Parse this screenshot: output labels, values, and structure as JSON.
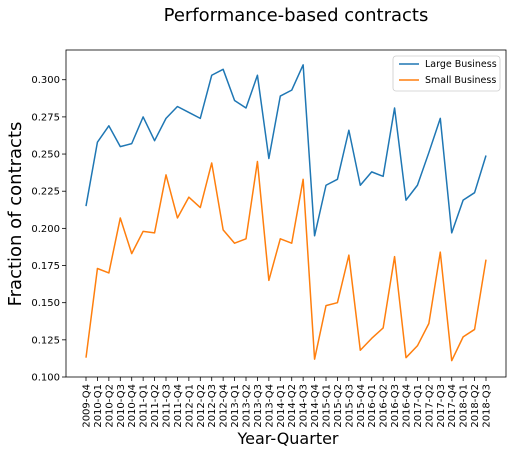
{
  "chart_data": {
    "type": "line",
    "title": "Performance-based contracts",
    "xlabel": "Year-Quarter",
    "ylabel": "Fraction of contracts",
    "ylim": [
      0.1,
      0.32
    ],
    "yticks": [
      "0.100",
      "0.125",
      "0.150",
      "0.175",
      "0.200",
      "0.225",
      "0.250",
      "0.275",
      "0.300"
    ],
    "grid": false,
    "legend_position": "top-right",
    "categories": [
      "2009-Q4",
      "2010-Q1",
      "2010-Q2",
      "2010-Q3",
      "2010-Q4",
      "2011-Q1",
      "2011-Q2",
      "2011-Q3",
      "2011-Q4",
      "2012-Q1",
      "2012-Q2",
      "2012-Q3",
      "2012-Q4",
      "2013-Q1",
      "2013-Q2",
      "2013-Q3",
      "2013-Q4",
      "2014-Q1",
      "2014-Q2",
      "2014-Q3",
      "2014-Q4",
      "2015-Q1",
      "2015-Q2",
      "2015-Q3",
      "2015-Q4",
      "2016-Q1",
      "2016-Q2",
      "2016-Q3",
      "2016-Q4",
      "2017-Q1",
      "2017-Q2",
      "2017-Q3",
      "2017-Q4",
      "2018-Q1",
      "2018-Q2",
      "2018-Q3"
    ],
    "series": [
      {
        "name": "Large Business",
        "color": "#1f77b4",
        "values": [
          0.215,
          0.258,
          0.269,
          0.255,
          0.257,
          0.275,
          0.259,
          0.274,
          0.282,
          0.278,
          0.274,
          0.303,
          0.307,
          0.286,
          0.281,
          0.303,
          0.247,
          0.289,
          0.293,
          0.31,
          0.195,
          0.229,
          0.233,
          0.266,
          0.229,
          0.238,
          0.235,
          0.281,
          0.219,
          0.229,
          0.251,
          0.274,
          0.197,
          0.219,
          0.224,
          0.249
        ]
      },
      {
        "name": "Small Business",
        "color": "#ff7f0e",
        "values": [
          0.113,
          0.173,
          0.17,
          0.207,
          0.183,
          0.198,
          0.197,
          0.236,
          0.207,
          0.221,
          0.214,
          0.244,
          0.199,
          0.19,
          0.193,
          0.245,
          0.165,
          0.193,
          0.19,
          0.233,
          0.112,
          0.148,
          0.15,
          0.182,
          0.118,
          0.126,
          0.133,
          0.181,
          0.113,
          0.121,
          0.136,
          0.184,
          0.111,
          0.127,
          0.132,
          0.179
        ]
      }
    ]
  }
}
